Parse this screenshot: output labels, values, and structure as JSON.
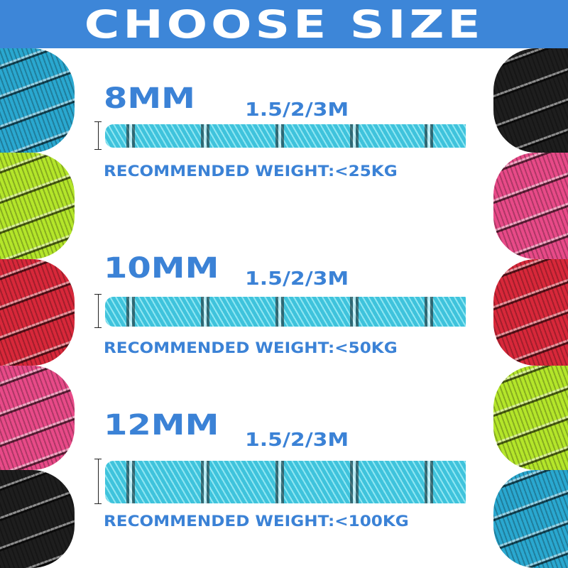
{
  "header": {
    "title": "CHOOSE SIZE"
  },
  "colors": {
    "accent": "#3d86d8",
    "text": "#3b82d6",
    "rope": "#3fc3dc"
  },
  "coils": {
    "left": [
      "#2aa8d0",
      "#b4e62a",
      "#d8283a",
      "#e84a88",
      "#1e1e1e"
    ],
    "right": [
      "#1e1e1e",
      "#e84a88",
      "#d8283a",
      "#b4e62a",
      "#2aa8d0"
    ]
  },
  "sizes": [
    {
      "diameter": "8MM",
      "lengths": "1.5/2/3M",
      "recommended": "RECOMMENDED  WEIGHT:<25KG"
    },
    {
      "diameter": "10MM",
      "lengths": "1.5/2/3M",
      "recommended": "RECOMMENDED  WEIGHT:<50KG"
    },
    {
      "diameter": "12MM",
      "lengths": "1.5/2/3M",
      "recommended": "RECOMMENDED  WEIGHT:<100KG"
    }
  ]
}
